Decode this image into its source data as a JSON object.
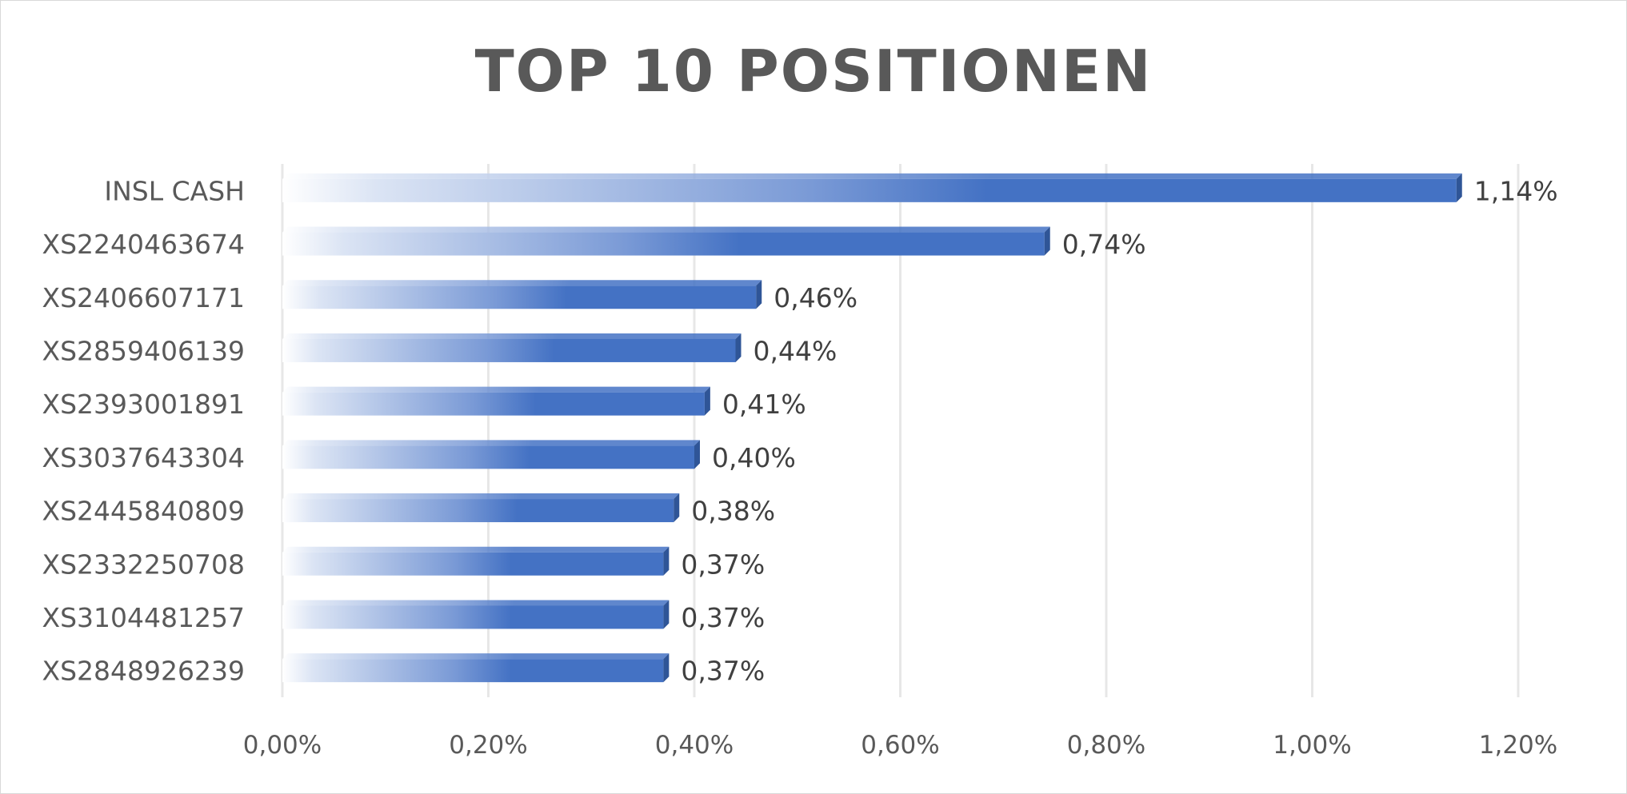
{
  "chart_data": {
    "type": "bar",
    "orientation": "horizontal",
    "title": "TOP 10 POSITIONEN",
    "xlabel": "",
    "ylabel": "",
    "categories": [
      "INSL CASH",
      "XS2240463674",
      "XS2406607171",
      "XS2859406139",
      "XS2393001891",
      "XS3037643304",
      "XS2445840809",
      "XS2332250708",
      "XS3104481257",
      "XS2848926239"
    ],
    "values": [
      1.14,
      0.74,
      0.46,
      0.44,
      0.41,
      0.4,
      0.38,
      0.37,
      0.37,
      0.37
    ],
    "value_labels": [
      "1,14%",
      "0,74%",
      "0,46%",
      "0,44%",
      "0,41%",
      "0,40%",
      "0,38%",
      "0,37%",
      "0,37%",
      "0,37%"
    ],
    "xlim": [
      0,
      1.2
    ],
    "x_ticks": [
      0,
      0.2,
      0.4,
      0.6,
      0.8,
      1.0,
      1.2
    ],
    "x_tick_labels": [
      "0,00%",
      "0,20%",
      "0,40%",
      "0,60%",
      "0,80%",
      "1,00%",
      "1,20%"
    ],
    "grid": true,
    "legend": "none",
    "colors": {
      "bar": "#4472c4",
      "bar_dark": "#2f5597",
      "bar_top": "#3a64ad",
      "grid": "#e7e7e7",
      "text": "#595959"
    }
  }
}
